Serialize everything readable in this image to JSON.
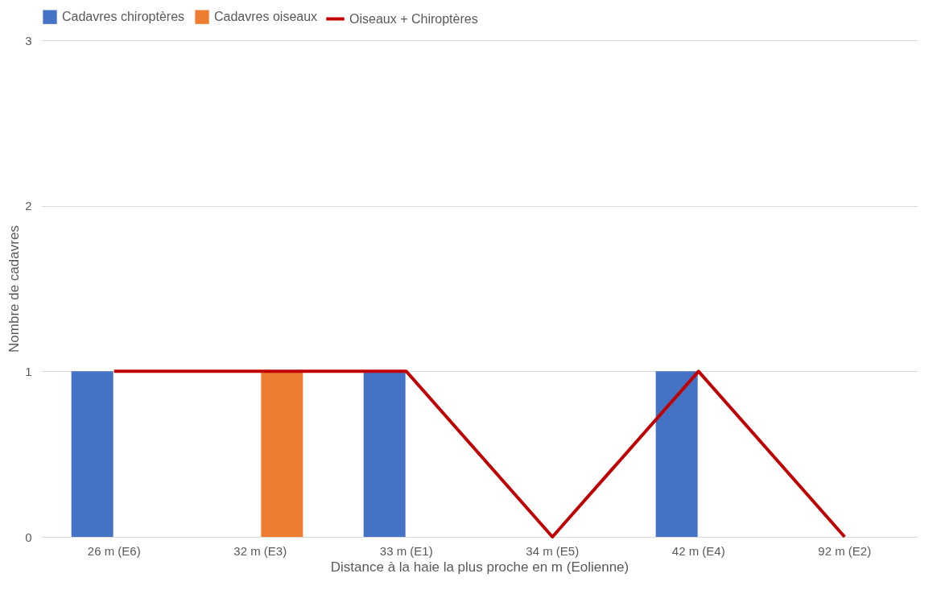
{
  "chart_data": {
    "type": "bar",
    "xlabel": "Distance à la haie la plus proche  en m (Eolienne)",
    "ylabel": "Nombre de cadavres",
    "categories": [
      "26 m (E6)",
      "32 m (E3)",
      "33 m (E1)",
      "34 m (E5)",
      "42 m (E4)",
      "92 m (E2)"
    ],
    "series": [
      {
        "name": "Cadavres chiroptères",
        "color": "#4472c4",
        "values": [
          1,
          0,
          1,
          0,
          1,
          0
        ]
      },
      {
        "name": "Cadavres oiseaux",
        "color": "#ed7d31",
        "values": [
          0,
          1,
          0,
          0,
          0,
          0
        ]
      },
      {
        "name": "Oiseaux + Chiroptères",
        "color": "#c00000",
        "type": "line",
        "values": [
          1,
          1,
          1,
          0,
          1,
          0
        ]
      }
    ],
    "ylim": [
      0,
      3
    ],
    "yticks": [
      0,
      1,
      2,
      3
    ],
    "grid": "y",
    "legend": "top"
  }
}
